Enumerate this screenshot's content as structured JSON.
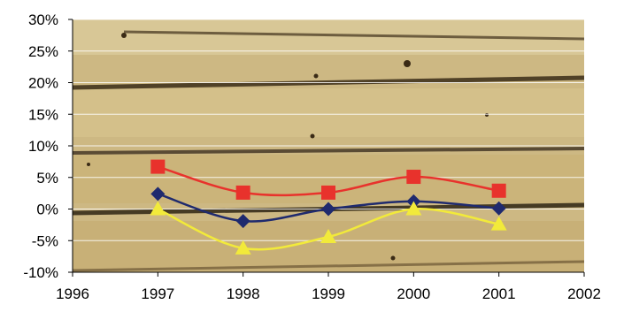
{
  "chart_data": {
    "type": "line",
    "x": [
      1997,
      1998,
      1999,
      2000,
      2001
    ],
    "xlim": [
      1996,
      2002
    ],
    "ylim": [
      -0.1,
      0.3
    ],
    "x_ticks": [
      {
        "value": 1996,
        "label": "1996"
      },
      {
        "value": 1997,
        "label": "1997"
      },
      {
        "value": 1998,
        "label": "1998"
      },
      {
        "value": 1999,
        "label": "1999"
      },
      {
        "value": 2000,
        "label": "2000"
      },
      {
        "value": 2001,
        "label": "2001"
      },
      {
        "value": 2002,
        "label": "2002"
      }
    ],
    "y_ticks": [
      {
        "value": 0.3,
        "label": "30%"
      },
      {
        "value": 0.25,
        "label": "25%"
      },
      {
        "value": 0.2,
        "label": "20%"
      },
      {
        "value": 0.15,
        "label": "15%"
      },
      {
        "value": 0.1,
        "label": "10%"
      },
      {
        "value": 0.05,
        "label": "5%"
      },
      {
        "value": 0.0,
        "label": "0%"
      },
      {
        "value": -0.05,
        "label": "-5%"
      },
      {
        "value": -0.1,
        "label": "-10%"
      }
    ],
    "grid": true,
    "smoothed": true,
    "legend": "none",
    "background": "wood-texture",
    "series": [
      {
        "marker": "square",
        "color": "#e8322c",
        "values": [
          0.067,
          0.026,
          0.026,
          0.051,
          0.029
        ]
      },
      {
        "marker": "diamond",
        "color": "#1f2a6e",
        "values": [
          0.024,
          -0.019,
          0.0,
          0.012,
          0.001
        ]
      },
      {
        "marker": "triangle",
        "color": "#f2ea3a",
        "values": [
          0.0,
          -0.062,
          -0.044,
          0.0,
          -0.024
        ]
      }
    ]
  }
}
